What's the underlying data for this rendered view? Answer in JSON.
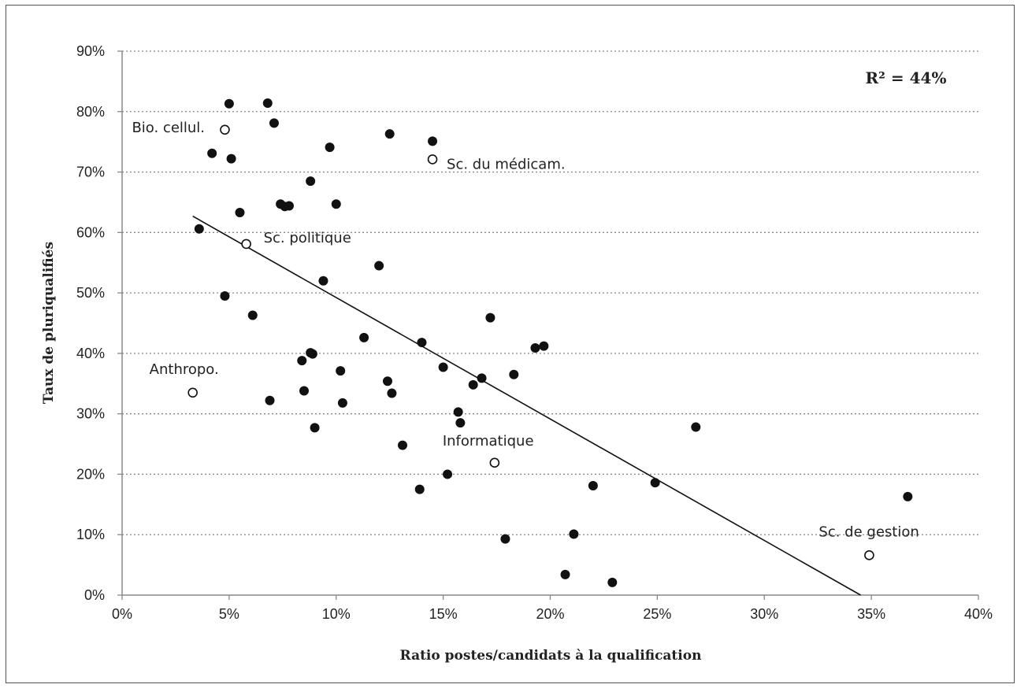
{
  "chart_data": {
    "type": "scatter",
    "xlabel": "Ratio postes/candidats à la qualification",
    "ylabel": "Taux de pluriqualifiés",
    "xlim": [
      0,
      40
    ],
    "ylim": [
      0,
      90
    ],
    "x_ticks": [
      0,
      5,
      10,
      15,
      20,
      25,
      30,
      35,
      40
    ],
    "y_ticks": [
      0,
      10,
      20,
      30,
      40,
      50,
      60,
      70,
      80,
      90
    ],
    "x_tick_labels": [
      "0%",
      "5%",
      "10%",
      "15%",
      "20%",
      "25%",
      "30%",
      "35%",
      "40%"
    ],
    "y_tick_labels": [
      "0%",
      "10%",
      "20%",
      "30%",
      "40%",
      "50%",
      "60%",
      "70%",
      "80%",
      "90%"
    ],
    "grid": "horizontal-dotted",
    "annotation": "R² = 44%",
    "colors": {
      "filled": "#111111",
      "open_fill": "#ffffff",
      "open_stroke": "#111111",
      "grid": "#888888"
    },
    "points": [
      {
        "x": 5.0,
        "y": 81.3
      },
      {
        "x": 6.8,
        "y": 81.4
      },
      {
        "x": 7.1,
        "y": 78.1
      },
      {
        "x": 4.2,
        "y": 73.1
      },
      {
        "x": 5.1,
        "y": 72.2
      },
      {
        "x": 9.7,
        "y": 74.1
      },
      {
        "x": 12.5,
        "y": 76.3
      },
      {
        "x": 14.5,
        "y": 75.1
      },
      {
        "x": 8.8,
        "y": 68.5
      },
      {
        "x": 7.4,
        "y": 64.7
      },
      {
        "x": 7.6,
        "y": 64.3
      },
      {
        "x": 7.8,
        "y": 64.4
      },
      {
        "x": 10.0,
        "y": 64.7
      },
      {
        "x": 5.5,
        "y": 63.3
      },
      {
        "x": 3.6,
        "y": 60.6
      },
      {
        "x": 12.0,
        "y": 54.5
      },
      {
        "x": 9.4,
        "y": 52.0
      },
      {
        "x": 4.8,
        "y": 49.5
      },
      {
        "x": 6.1,
        "y": 46.3
      },
      {
        "x": 17.2,
        "y": 45.9
      },
      {
        "x": 11.3,
        "y": 42.6
      },
      {
        "x": 14.0,
        "y": 41.8
      },
      {
        "x": 19.3,
        "y": 40.9
      },
      {
        "x": 19.7,
        "y": 41.2
      },
      {
        "x": 8.8,
        "y": 40.1
      },
      {
        "x": 8.9,
        "y": 39.9
      },
      {
        "x": 8.4,
        "y": 38.8
      },
      {
        "x": 10.2,
        "y": 37.1
      },
      {
        "x": 15.0,
        "y": 37.7
      },
      {
        "x": 18.3,
        "y": 36.5
      },
      {
        "x": 16.8,
        "y": 35.9
      },
      {
        "x": 12.4,
        "y": 35.4
      },
      {
        "x": 16.4,
        "y": 34.8
      },
      {
        "x": 8.5,
        "y": 33.8
      },
      {
        "x": 12.6,
        "y": 33.4
      },
      {
        "x": 6.9,
        "y": 32.2
      },
      {
        "x": 10.3,
        "y": 31.8
      },
      {
        "x": 15.7,
        "y": 30.3
      },
      {
        "x": 15.8,
        "y": 28.5
      },
      {
        "x": 9.0,
        "y": 27.7
      },
      {
        "x": 26.8,
        "y": 27.8
      },
      {
        "x": 13.1,
        "y": 24.8
      },
      {
        "x": 15.2,
        "y": 20.0
      },
      {
        "x": 22.0,
        "y": 18.1
      },
      {
        "x": 24.9,
        "y": 18.6
      },
      {
        "x": 13.9,
        "y": 17.5
      },
      {
        "x": 36.7,
        "y": 16.3
      },
      {
        "x": 21.1,
        "y": 10.1
      },
      {
        "x": 17.9,
        "y": 9.3
      },
      {
        "x": 20.7,
        "y": 3.4
      },
      {
        "x": 22.9,
        "y": 2.1
      }
    ],
    "labeled_points": [
      {
        "label": "Bio. cellul.",
        "x": 4.8,
        "y": 77.0
      },
      {
        "label": "Sc. du médicam.",
        "x": 14.5,
        "y": 72.1
      },
      {
        "label": "Sc. politique",
        "x": 5.8,
        "y": 58.1
      },
      {
        "label": "Anthropo.",
        "x": 3.3,
        "y": 33.5
      },
      {
        "label": "Informatique",
        "x": 17.4,
        "y": 21.9
      },
      {
        "label": "Sc. de gestion",
        "x": 34.9,
        "y": 6.6
      }
    ],
    "trendline": {
      "x1": 3.3,
      "y1": 62.7,
      "x2": 34.5,
      "y2": 0.0
    }
  }
}
